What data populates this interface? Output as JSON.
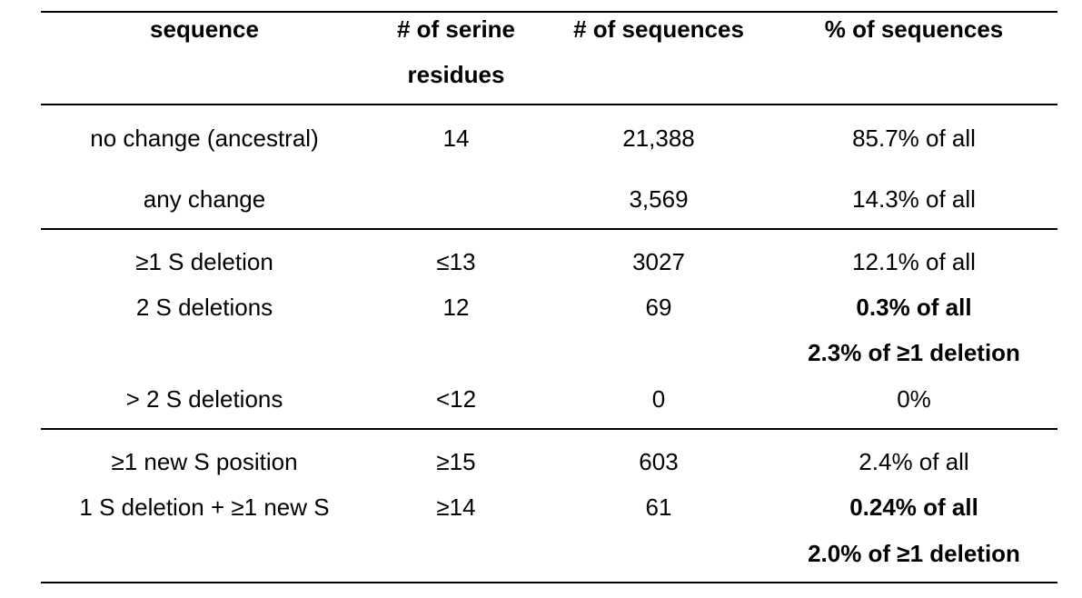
{
  "table": {
    "headers": [
      "sequence",
      "# of serine",
      "residues",
      "# of sequences",
      "% of sequences"
    ],
    "rows": [
      {
        "sequence": "no change (ancestral)",
        "serine": "14",
        "count": "21,388",
        "percent": "85.7% of all"
      },
      {
        "sequence": "any change",
        "serine": "",
        "count": "3,569",
        "percent": "14.3% of all"
      },
      {
        "sequence": "≥1 S deletion",
        "serine": "≤13",
        "count": "3027",
        "percent": "12.1% of all"
      },
      {
        "sequence": "2 S deletions",
        "serine": "12",
        "count": "69",
        "percent": "0.3% of all",
        "percent2": "2.3% of ≥1 deletion"
      },
      {
        "sequence": "> 2 S deletions",
        "serine": "<12",
        "count": "0",
        "percent": "0%"
      },
      {
        "sequence": "≥1 new S position",
        "serine": "≥15",
        "count": "603",
        "percent": "2.4% of all"
      },
      {
        "sequence": "1 S deletion + ≥1 new S",
        "serine": "≥14",
        "count": "61",
        "percent": "0.24% of all",
        "percent2": "2.0% of ≥1 deletion"
      }
    ]
  }
}
